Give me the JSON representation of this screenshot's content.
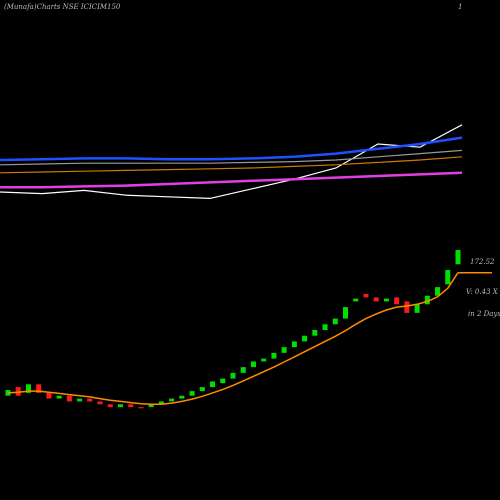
{
  "chart_data": {
    "type": "candlestick",
    "title": "(Munafa)Charts NSE ICICIM150",
    "corner_label": "1",
    "last_price": "172.52",
    "volume_note": "V: 0.43 X",
    "period_note": "in 2 Days",
    "ylim": [
      145,
      180
    ],
    "up_color": "#00e000",
    "down_color": "#ff1a1a",
    "ma_color": "#ff8c00",
    "open": [
      151,
      152.5,
      151.5,
      153,
      151.5,
      150.5,
      151,
      150,
      150.5,
      150,
      149.5,
      149,
      149.5,
      149,
      149,
      149.5,
      150,
      150.5,
      151,
      151.8,
      152.5,
      153.2,
      154,
      155,
      156,
      157,
      157.5,
      158.5,
      159.5,
      160.5,
      161.5,
      162.5,
      163.5,
      164.5,
      167.5,
      168.8,
      168.2,
      167.5,
      168.2,
      167.5,
      165.5,
      167,
      168.5,
      170.5,
      174
    ],
    "close": [
      152,
      151,
      153,
      151.5,
      150.5,
      151,
      150,
      150.5,
      150,
      149.5,
      149,
      149.5,
      149,
      148.8,
      149.5,
      150,
      150.5,
      151,
      151.8,
      152.5,
      153.5,
      154,
      155,
      156,
      157,
      157.5,
      158.5,
      159.5,
      160.5,
      161.5,
      162.5,
      163.5,
      164.5,
      166.5,
      168,
      168.2,
      167.5,
      168,
      167,
      165.5,
      167,
      168.5,
      170,
      173,
      176.5
    ],
    "ma": [
      151.5,
      151.6,
      151.8,
      151.8,
      151.6,
      151.4,
      151.2,
      151,
      150.8,
      150.5,
      150.2,
      150,
      149.8,
      149.6,
      149.5,
      149.5,
      149.7,
      150,
      150.4,
      150.9,
      151.5,
      152.1,
      152.8,
      153.6,
      154.4,
      155.2,
      156,
      156.9,
      157.8,
      158.7,
      159.6,
      160.5,
      161.4,
      162.4,
      163.5,
      164.5,
      165.3,
      166,
      166.5,
      166.7,
      167,
      167.5,
      168.3,
      169.8,
      172.52
    ],
    "indicator_panel": {
      "ylim": [
        0,
        100
      ],
      "series": [
        {
          "color": "#ffffff",
          "values": [
            30,
            29,
            31,
            28,
            27,
            26,
            32,
            38,
            45,
            60,
            58,
            72
          ]
        },
        {
          "color": "#1e50ff",
          "values": [
            50,
            50.5,
            51,
            51,
            50.5,
            50.5,
            51,
            52,
            54,
            57,
            60,
            64
          ]
        },
        {
          "color": "#999999",
          "values": [
            47,
            47.5,
            48,
            48,
            48,
            48,
            48.5,
            49,
            50,
            52,
            54,
            56
          ]
        },
        {
          "color": "#cc7a00",
          "values": [
            42,
            42.5,
            43,
            43.5,
            44,
            44.5,
            45,
            46,
            47,
            48.5,
            50,
            52
          ]
        },
        {
          "color": "#e040e0",
          "values": [
            33,
            33,
            33.5,
            34,
            35,
            36,
            37,
            38,
            39,
            40,
            41,
            42
          ]
        }
      ]
    }
  }
}
